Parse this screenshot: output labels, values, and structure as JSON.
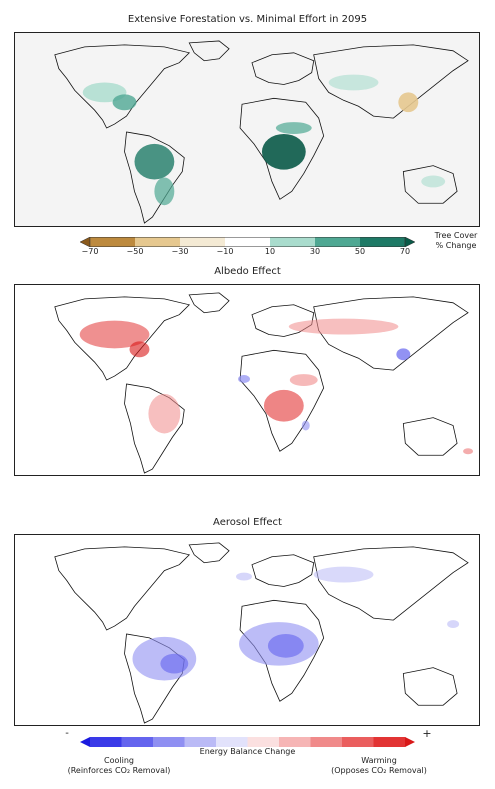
{
  "panels": [
    {
      "title": "Extensive Forestation vs. Minimal Effort in 2095"
    },
    {
      "title": "Albedo Effect"
    },
    {
      "title": "Aerosol Effect"
    }
  ],
  "tree_colorbar": {
    "ticks": [
      "−70",
      "−50",
      "−30",
      "−10",
      "10",
      "30",
      "50",
      "70"
    ],
    "label_line1": "Tree Cover",
    "label_line2": "% Change",
    "colors": [
      "#8a5a1c",
      "#bd8a3e",
      "#e6c88f",
      "#f4ead4",
      "#ffffff",
      "#a9dccd",
      "#4fa893",
      "#1e7a66",
      "#0a5a48"
    ]
  },
  "energy_colorbar": {
    "minus": "-",
    "plus": "+",
    "label": "Energy Balance Change",
    "left_line1": "Cooling",
    "left_line2": "(Reinforces CO₂ Removal)",
    "right_line1": "Warming",
    "right_line2": "(Opposes CO₂ Removal)",
    "colors": [
      "#1a1adf",
      "#3a3ae8",
      "#6464ee",
      "#8f8ff2",
      "#babaf6",
      "#e2e2fb",
      "#fbe0e0",
      "#f6b5b5",
      "#f08a8a",
      "#ea5e5e",
      "#e23434",
      "#d81818"
    ]
  }
}
